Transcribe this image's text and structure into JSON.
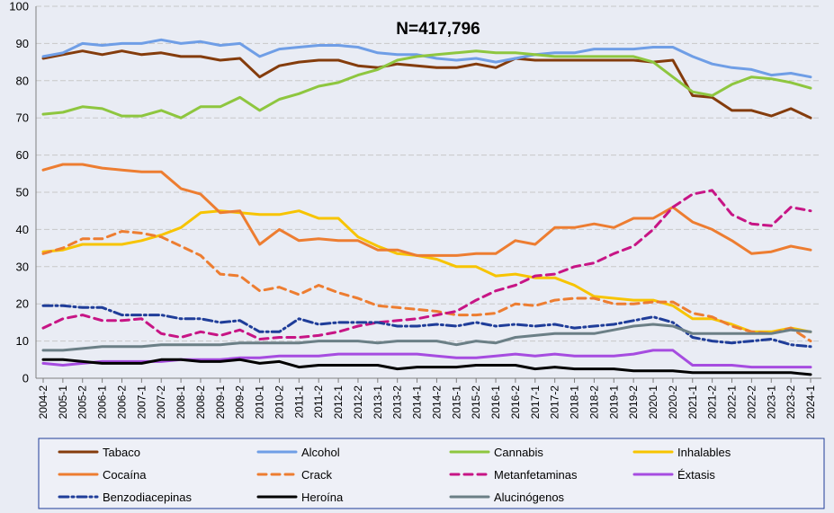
{
  "chart_data": {
    "type": "line",
    "title": "N=417,796",
    "xlabel": "",
    "ylabel": "",
    "ylim": [
      0,
      100
    ],
    "yticks": [
      0,
      10,
      20,
      30,
      40,
      50,
      60,
      70,
      80,
      90,
      100
    ],
    "grid": true,
    "legend_position": "bottom",
    "categories": [
      "2004-2",
      "2005-1",
      "2005-2",
      "2006-1",
      "2006-2",
      "2007-1",
      "2007-2",
      "2008-1",
      "2008-2",
      "2009-1",
      "2009-2",
      "2010-1",
      "2010-2",
      "2011-1",
      "2011-2",
      "2012-1",
      "2012-2",
      "2013-1",
      "2013-2",
      "2014-1",
      "2014-2",
      "2015-1",
      "2015-2",
      "2016-1",
      "2016-2",
      "2017-1",
      "2017-2",
      "2018-1",
      "2018-2",
      "2019-1",
      "2019-2",
      "2020-1",
      "2020-2",
      "2021-1",
      "2021-2",
      "2022-1",
      "2022-2",
      "2023-1",
      "2023-2",
      "2024-1"
    ],
    "series": [
      {
        "name": "Tabaco",
        "color": "#843c0c",
        "dash": "solid",
        "values": [
          86,
          87,
          88,
          87,
          88,
          87,
          87.5,
          86.5,
          86.5,
          85.5,
          86,
          81,
          84,
          85,
          85.5,
          85.5,
          84,
          83.5,
          84.5,
          84,
          83.5,
          83.5,
          84.5,
          83.5,
          86,
          85.5,
          85.5,
          85.5,
          85.5,
          85.5,
          85.5,
          85,
          85.5,
          76,
          75.5,
          72,
          72,
          70.5,
          72.5,
          70
        ]
      },
      {
        "name": "Alcohol",
        "color": "#6f9ee6",
        "dash": "solid",
        "values": [
          86.5,
          87.5,
          90,
          89.5,
          90,
          90,
          91,
          90,
          90.5,
          89.5,
          90,
          86.5,
          88.5,
          89,
          89.5,
          89.5,
          89,
          87.5,
          87,
          87,
          86,
          85.5,
          86,
          85,
          86,
          87,
          87.5,
          87.5,
          88.5,
          88.5,
          88.5,
          89,
          89,
          86.5,
          84.5,
          83.5,
          83,
          81.5,
          82,
          81
        ]
      },
      {
        "name": "Cannabis",
        "color": "#8ec63f",
        "dash": "solid",
        "values": [
          71,
          71.5,
          73,
          72.5,
          70.5,
          70.5,
          72,
          70,
          73,
          73,
          75.5,
          72,
          75,
          76.5,
          78.5,
          79.5,
          81.5,
          83,
          85.5,
          86.5,
          87,
          87.5,
          88,
          87.5,
          87.5,
          87,
          86.5,
          86.5,
          86.5,
          86.5,
          86.5,
          85,
          81,
          77,
          76,
          79,
          81,
          80.5,
          79.5,
          78
        ]
      },
      {
        "name": "Inhalables",
        "color": "#f7c400",
        "dash": "solid",
        "values": [
          34,
          34.5,
          36,
          36,
          36,
          37,
          38.5,
          40.5,
          44.5,
          45,
          44.5,
          44,
          44,
          45,
          43,
          43,
          38,
          35.5,
          33.5,
          33,
          32,
          30,
          30,
          27.5,
          28,
          27,
          27,
          25,
          22,
          21.5,
          21,
          21,
          19.5,
          16,
          16,
          14.5,
          12.5,
          12.5,
          13.5,
          12.5
        ]
      },
      {
        "name": "Cocaína",
        "color": "#ed7d31",
        "dash": "solid",
        "values": [
          56,
          57.5,
          57.5,
          56.5,
          56,
          55.5,
          55.5,
          51,
          49.5,
          44.5,
          45,
          36,
          40,
          37,
          37.5,
          37,
          37,
          34.5,
          34.5,
          33,
          33,
          33,
          33.5,
          33.5,
          37,
          36,
          40.5,
          40.5,
          41.5,
          40.5,
          43,
          43,
          46,
          42,
          40,
          37,
          33.5,
          34,
          35.5,
          34.5
        ]
      },
      {
        "name": "Crack",
        "color": "#ed7d31",
        "dash": "dash",
        "values": [
          33.5,
          35,
          37.5,
          37.5,
          39.5,
          39,
          38,
          35.5,
          33,
          28,
          27.5,
          23.5,
          24.5,
          22.5,
          25,
          23,
          21.5,
          19.5,
          19,
          18.5,
          18,
          17,
          17,
          17.5,
          20,
          19.5,
          21,
          21.5,
          21.5,
          20,
          20,
          20.5,
          20.5,
          17.5,
          16.5,
          14,
          12.5,
          12,
          13.5,
          10
        ]
      },
      {
        "name": "Metanfetaminas",
        "color": "#c71585",
        "dash": "dash",
        "values": [
          13.5,
          16,
          17,
          15.5,
          15.5,
          16,
          12,
          11,
          12.5,
          11.5,
          13,
          10.5,
          11,
          11,
          11.5,
          12.5,
          14,
          15,
          15.5,
          16,
          17,
          18,
          21,
          23.5,
          25,
          27.5,
          28,
          30,
          31,
          33.5,
          35.5,
          40,
          46,
          49.5,
          50.5,
          44,
          41.5,
          41,
          46,
          45
        ]
      },
      {
        "name": "Éxtasis",
        "color": "#a64ce0",
        "dash": "solid",
        "values": [
          4,
          3.5,
          4,
          4.5,
          4.5,
          4.5,
          4.5,
          5,
          5,
          5,
          5.5,
          5.5,
          6,
          6,
          6,
          6.5,
          6.5,
          6.5,
          6.5,
          6.5,
          6,
          5.5,
          5.5,
          6,
          6.5,
          6,
          6.5,
          6,
          6,
          6,
          6.5,
          7.5,
          7.5,
          3.5,
          3.5,
          3.5,
          3,
          3,
          3,
          3
        ]
      },
      {
        "name": "Benzodiacepinas",
        "color": "#1f3d99",
        "dash": "dashdot",
        "values": [
          19.5,
          19.5,
          19,
          19,
          17,
          17,
          17,
          16,
          16,
          15,
          15.5,
          12.5,
          12.5,
          16,
          14.5,
          15,
          15,
          15,
          14,
          14,
          14.5,
          14,
          15,
          14,
          14.5,
          14,
          14.5,
          13.5,
          14,
          14.5,
          15.5,
          16.5,
          15,
          11,
          10,
          9.5,
          10,
          10.5,
          9,
          8.5
        ]
      },
      {
        "name": "Heroína",
        "color": "#000000",
        "dash": "solid",
        "values": [
          5,
          5,
          4.5,
          4,
          4,
          4,
          5,
          5,
          4.5,
          4.5,
          5,
          4,
          4.5,
          3,
          3.5,
          3.5,
          3.5,
          3.5,
          2.5,
          3,
          3,
          3,
          3.5,
          3.5,
          3.5,
          2.5,
          3,
          2.5,
          2.5,
          2.5,
          2,
          2,
          2,
          1.5,
          1.5,
          1.5,
          1.5,
          1.5,
          1.5,
          1
        ]
      },
      {
        "name": "Alucinógenos",
        "color": "#6b7f86",
        "dash": "solid",
        "values": [
          7.5,
          7.5,
          8,
          8.5,
          8.5,
          8.5,
          9,
          9,
          9,
          9,
          9.5,
          9.5,
          9.5,
          9.5,
          10,
          10,
          10,
          9.5,
          10,
          10,
          10,
          9,
          10,
          9.5,
          11,
          11.5,
          12,
          12,
          12,
          13,
          14,
          14.5,
          14,
          12,
          12,
          12,
          12,
          12,
          13,
          12.5
        ]
      }
    ]
  }
}
